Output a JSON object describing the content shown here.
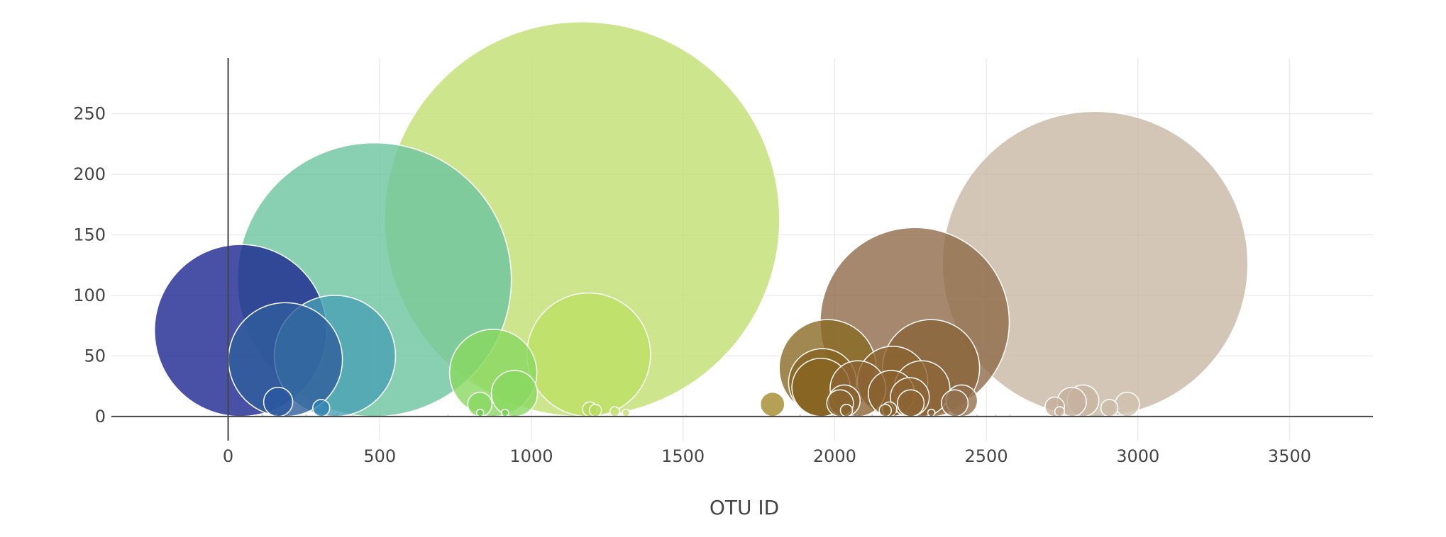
{
  "chart_data": {
    "type": "scatter",
    "mode": "bubble",
    "title": "",
    "xlabel": "OTU ID",
    "ylabel": "",
    "xlim": [
      -385,
      3775
    ],
    "ylim": [
      -20,
      296
    ],
    "xticks": [
      0,
      500,
      1000,
      1500,
      2000,
      2500,
      3000,
      3500
    ],
    "yticks": [
      0,
      50,
      100,
      150,
      200,
      250
    ],
    "grid": true,
    "legend": "none",
    "points": [
      {
        "x": 1167,
        "y": 163,
        "size": 163,
        "color": "#c0e070",
        "opacity": 0.8
      },
      {
        "x": 2859,
        "y": 126,
        "size": 126,
        "color": "#c8b8a4",
        "opacity": 0.8
      },
      {
        "x": 482,
        "y": 113,
        "size": 113,
        "color": "#6cc4a0",
        "opacity": 0.8
      },
      {
        "x": 2264,
        "y": 78,
        "size": 78,
        "color": "#8e6a48",
        "opacity": 0.8
      },
      {
        "x": 41,
        "y": 71,
        "size": 71,
        "color": "#1c2590",
        "opacity": 0.8
      },
      {
        "x": 1189,
        "y": 51,
        "size": 51,
        "color": "#bde064",
        "opacity": 0.8
      },
      {
        "x": 352,
        "y": 50,
        "size": 50,
        "color": "#48a0b4",
        "opacity": 0.8
      },
      {
        "x": 189,
        "y": 47,
        "size": 47,
        "color": "#2f5e9c",
        "opacity": 0.8
      },
      {
        "x": 2318,
        "y": 40,
        "size": 40,
        "color": "#8a6438",
        "opacity": 0.8
      },
      {
        "x": 1977,
        "y": 40,
        "size": 40,
        "color": "#8a6a24",
        "opacity": 0.8
      },
      {
        "x": 874,
        "y": 36,
        "size": 36,
        "color": "#88d860",
        "opacity": 0.8
      },
      {
        "x": 1960,
        "y": 28,
        "size": 28,
        "color": "#876422",
        "opacity": 0.8
      },
      {
        "x": 2191,
        "y": 29,
        "size": 29,
        "color": "#8a6430",
        "opacity": 0.8
      },
      {
        "x": 1955,
        "y": 24,
        "size": 24,
        "color": "#876420",
        "opacity": 0.8
      },
      {
        "x": 2077,
        "y": 23,
        "size": 23,
        "color": "#8c6434",
        "opacity": 0.8
      },
      {
        "x": 2288,
        "y": 23,
        "size": 23,
        "color": "#8c6638",
        "opacity": 0.8
      },
      {
        "x": 2187,
        "y": 19,
        "size": 19,
        "color": "#8a6230",
        "opacity": 0.8
      },
      {
        "x": 944,
        "y": 19,
        "size": 19,
        "color": "#88d860",
        "opacity": 0.8
      },
      {
        "x": 2248,
        "y": 16,
        "size": 16,
        "color": "#8c6434",
        "opacity": 0.8
      },
      {
        "x": 2819,
        "y": 13,
        "size": 13,
        "color": "#c8b4a0",
        "opacity": 0.8
      },
      {
        "x": 2419,
        "y": 13,
        "size": 13,
        "color": "#92704e",
        "opacity": 0.8
      },
      {
        "x": 2032,
        "y": 13,
        "size": 13,
        "color": "#8a6430",
        "opacity": 0.8
      },
      {
        "x": 165,
        "y": 12,
        "size": 12,
        "color": "#2a57a0",
        "opacity": 0.8
      },
      {
        "x": 2782,
        "y": 12,
        "size": 12,
        "color": "#c4b09c",
        "opacity": 0.8
      },
      {
        "x": 2396,
        "y": 11,
        "size": 11,
        "color": "#92704e",
        "opacity": 0.8
      },
      {
        "x": 2018,
        "y": 11,
        "size": 11,
        "color": "#8a6430",
        "opacity": 0.8
      },
      {
        "x": 2251,
        "y": 11,
        "size": 11,
        "color": "#8c6434",
        "opacity": 0.8
      },
      {
        "x": 1795,
        "y": 10,
        "size": 10,
        "color": "#a4882c",
        "opacity": 0.8
      },
      {
        "x": 830,
        "y": 10,
        "size": 10,
        "color": "#8ad862",
        "opacity": 0.8
      },
      {
        "x": 2965,
        "y": 10,
        "size": 10,
        "color": "#d0c0ae",
        "opacity": 0.8
      },
      {
        "x": 2726,
        "y": 8,
        "size": 8,
        "color": "#c4ae9a",
        "opacity": 0.8
      },
      {
        "x": 2906,
        "y": 7,
        "size": 7,
        "color": "#ccbcaa",
        "opacity": 0.8
      },
      {
        "x": 307,
        "y": 7,
        "size": 7,
        "color": "#2e7fb0",
        "opacity": 0.8
      },
      {
        "x": 2181,
        "y": 6,
        "size": 6,
        "color": "#8a6430",
        "opacity": 0.8
      },
      {
        "x": 1193,
        "y": 6,
        "size": 6,
        "color": "#b4dc5c",
        "opacity": 0.8
      },
      {
        "x": 2039,
        "y": 5,
        "size": 5,
        "color": "#8a6430",
        "opacity": 0.8
      },
      {
        "x": 1211,
        "y": 5,
        "size": 5,
        "color": "#b4dc5c",
        "opacity": 0.8
      },
      {
        "x": 2167,
        "y": 5,
        "size": 5,
        "color": "#8a6430",
        "opacity": 0.8
      },
      {
        "x": 2742,
        "y": 4,
        "size": 4,
        "color": "#c4ae9a",
        "opacity": 0.8
      },
      {
        "x": 1275,
        "y": 4,
        "size": 4,
        "color": "#c4e070",
        "opacity": 0.8
      },
      {
        "x": 2319,
        "y": 3,
        "size": 3,
        "color": "#8c6638",
        "opacity": 0.8
      },
      {
        "x": 1312,
        "y": 3,
        "size": 3,
        "color": "#c4e070",
        "opacity": 0.8
      },
      {
        "x": 913,
        "y": 3,
        "size": 3,
        "color": "#72d050",
        "opacity": 0.8
      },
      {
        "x": 831,
        "y": 3,
        "size": 3,
        "color": "#72d050",
        "opacity": 0.8
      },
      {
        "x": 2935,
        "y": 2,
        "size": 2,
        "color": "#ccbcaa",
        "opacity": 0.8
      },
      {
        "x": 1961,
        "y": 2,
        "size": 2,
        "color": "#876422",
        "opacity": 0.8
      },
      {
        "x": 2244,
        "y": 2,
        "size": 2,
        "color": "#8c6434",
        "opacity": 0.8
      },
      {
        "x": 2200,
        "y": 2,
        "size": 2,
        "color": "#8a6430",
        "opacity": 0.8
      },
      {
        "x": 1184,
        "y": 2,
        "size": 2,
        "color": "#b4dc5c",
        "opacity": 0.8
      },
      {
        "x": 360,
        "y": 2,
        "size": 2,
        "color": "#48a0b4",
        "opacity": 0.8
      },
      {
        "x": 169,
        "y": 2,
        "size": 2,
        "color": "#2a57a0",
        "opacity": 0.8
      },
      {
        "x": 113,
        "y": 1,
        "size": 1,
        "color": "#8ca8c8",
        "opacity": 0.6
      },
      {
        "x": 159,
        "y": 1,
        "size": 1,
        "color": "#8ca8c8",
        "opacity": 0.6
      },
      {
        "x": 258,
        "y": 1,
        "size": 1,
        "color": "#a4c8d4",
        "opacity": 0.6
      },
      {
        "x": 412,
        "y": 1,
        "size": 1,
        "color": "#a4d8c8",
        "opacity": 0.6
      },
      {
        "x": 516,
        "y": 1,
        "size": 1,
        "color": "#a8e0c0",
        "opacity": 0.6
      },
      {
        "x": 725,
        "y": 1,
        "size": 1,
        "color": "#b0e0a8",
        "opacity": 0.6
      },
      {
        "x": 1510,
        "y": 1,
        "size": 1,
        "color": "#d0e8a8",
        "opacity": 0.6
      },
      {
        "x": 1886,
        "y": 1,
        "size": 1,
        "color": "#c8b890",
        "opacity": 0.6
      },
      {
        "x": 2075,
        "y": 1,
        "size": 1,
        "color": "#c4b098",
        "opacity": 0.6
      },
      {
        "x": 2124,
        "y": 1,
        "size": 1,
        "color": "#c4b098",
        "opacity": 0.6
      },
      {
        "x": 2470,
        "y": 1,
        "size": 1,
        "color": "#c8b8a8",
        "opacity": 0.6
      },
      {
        "x": 2531,
        "y": 1,
        "size": 1,
        "color": "#d0c4b8",
        "opacity": 0.6
      },
      {
        "x": 2578,
        "y": 1,
        "size": 1,
        "color": "#d0c4b8",
        "opacity": 0.6
      }
    ]
  }
}
